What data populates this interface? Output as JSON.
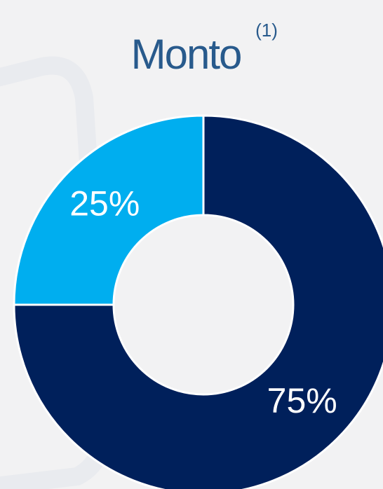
{
  "chart_data": {
    "type": "donut",
    "title": "Monto",
    "title_superscript": "(1)",
    "values": [
      75,
      25
    ],
    "value_labels": [
      "75%",
      "25%"
    ],
    "colors": [
      "#00205b",
      "#00aeef"
    ]
  }
}
